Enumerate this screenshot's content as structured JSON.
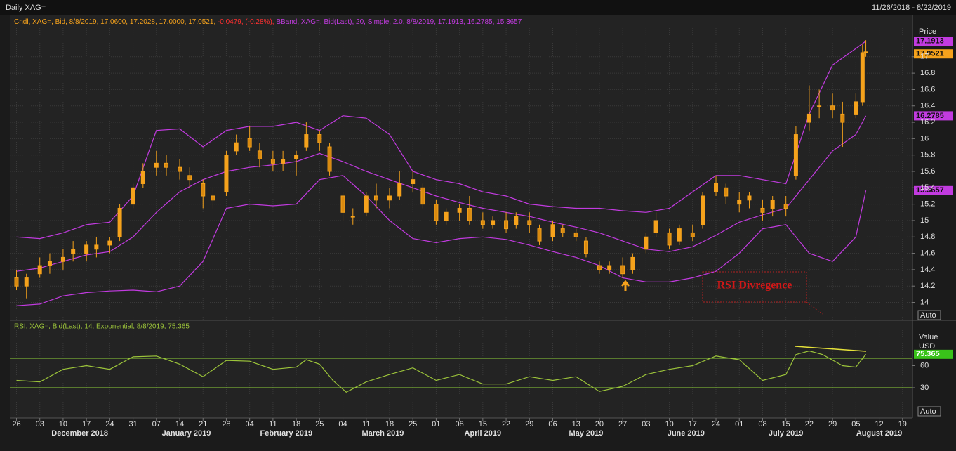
{
  "header": {
    "title": "Daily XAG=",
    "range": "11/26/2018 - 8/22/2019"
  },
  "chart_data": [
    {
      "type": "candlestick",
      "legend": {
        "candle": "Cndl, XAG=, Bid, 8/8/2019, 17.0600, 17.2028, 17.0000, 17.0521,",
        "change": "-0.0479, (-0.28%),",
        "bands": "BBand, XAG=, Bid(Last), 20, Simple, 2.0, 8/8/2019, 17.1913, 16.2785, 15.3657"
      },
      "y_label": "Price",
      "scale_mode": "Auto",
      "annotation": "RSI Divregence",
      "color": "#f5a21c",
      "grid": true,
      "xlim": [
        "2018-11-24",
        "2019-08-22"
      ],
      "ylim": [
        13.79,
        17.35
      ],
      "yticks": [
        14,
        14.2,
        14.4,
        14.6,
        14.8,
        15,
        15.2,
        15.4,
        15.6,
        15.8,
        16,
        16.2,
        16.4,
        16.6,
        16.8,
        17
      ],
      "xticks": [
        {
          "value": "2018-11-26",
          "label": "26"
        },
        {
          "value": "2018-12-03",
          "label": "03"
        },
        {
          "value": "2018-12-10",
          "label": "10"
        },
        {
          "value": "2018-12-17",
          "label": "17"
        },
        {
          "value": "2018-12-24",
          "label": "24"
        },
        {
          "value": "2018-12-31",
          "label": "31"
        },
        {
          "value": "2019-01-07",
          "label": "07"
        },
        {
          "value": "2019-01-14",
          "label": "14"
        },
        {
          "value": "2019-01-21",
          "label": "21"
        },
        {
          "value": "2019-01-28",
          "label": "28"
        },
        {
          "value": "2019-02-04",
          "label": "04"
        },
        {
          "value": "2019-02-11",
          "label": "11"
        },
        {
          "value": "2019-02-18",
          "label": "18"
        },
        {
          "value": "2019-02-25",
          "label": "25"
        },
        {
          "value": "2019-03-04",
          "label": "04"
        },
        {
          "value": "2019-03-11",
          "label": "11"
        },
        {
          "value": "2019-03-18",
          "label": "18"
        },
        {
          "value": "2019-03-25",
          "label": "25"
        },
        {
          "value": "2019-04-01",
          "label": "01"
        },
        {
          "value": "2019-04-08",
          "label": "08"
        },
        {
          "value": "2019-04-15",
          "label": "15"
        },
        {
          "value": "2019-04-22",
          "label": "22"
        },
        {
          "value": "2019-04-29",
          "label": "29"
        },
        {
          "value": "2019-05-06",
          "label": "06"
        },
        {
          "value": "2019-05-13",
          "label": "13"
        },
        {
          "value": "2019-05-20",
          "label": "20"
        },
        {
          "value": "2019-05-27",
          "label": "27"
        },
        {
          "value": "2019-06-03",
          "label": "03"
        },
        {
          "value": "2019-06-10",
          "label": "10"
        },
        {
          "value": "2019-06-17",
          "label": "17"
        },
        {
          "value": "2019-06-24",
          "label": "24"
        },
        {
          "value": "2019-07-01",
          "label": "01"
        },
        {
          "value": "2019-07-08",
          "label": "08"
        },
        {
          "value": "2019-07-15",
          "label": "15"
        },
        {
          "value": "2019-07-22",
          "label": "22"
        },
        {
          "value": "2019-07-29",
          "label": "29"
        },
        {
          "value": "2019-08-05",
          "label": "05"
        },
        {
          "value": "2019-08-12",
          "label": "12"
        },
        {
          "value": "2019-08-19",
          "label": "19"
        }
      ],
      "month_ticks": [
        {
          "value": "2018-12-15",
          "label": "December 2018"
        },
        {
          "value": "2019-01-16",
          "label": "January 2019"
        },
        {
          "value": "2019-02-15",
          "label": "February 2019"
        },
        {
          "value": "2019-03-16",
          "label": "March 2019"
        },
        {
          "value": "2019-04-15",
          "label": "April 2019"
        },
        {
          "value": "2019-05-16",
          "label": "May 2019"
        },
        {
          "value": "2019-06-15",
          "label": "June 2019"
        },
        {
          "value": "2019-07-15",
          "label": "July 2019"
        },
        {
          "value": "2019-08-12",
          "label": "August 2019"
        }
      ],
      "x": [
        "2018-11-26",
        "2018-11-29",
        "2018-12-03",
        "2018-12-06",
        "2018-12-10",
        "2018-12-13",
        "2018-12-17",
        "2018-12-20",
        "2018-12-24",
        "2018-12-27",
        "2018-12-31",
        "2019-01-03",
        "2019-01-07",
        "2019-01-10",
        "2019-01-14",
        "2019-01-17",
        "2019-01-21",
        "2019-01-24",
        "2019-01-28",
        "2019-01-31",
        "2019-02-04",
        "2019-02-07",
        "2019-02-11",
        "2019-02-14",
        "2019-02-18",
        "2019-02-21",
        "2019-02-25",
        "2019-02-28",
        "2019-03-04",
        "2019-03-07",
        "2019-03-11",
        "2019-03-14",
        "2019-03-18",
        "2019-03-21",
        "2019-03-25",
        "2019-03-28",
        "2019-04-01",
        "2019-04-04",
        "2019-04-08",
        "2019-04-11",
        "2019-04-15",
        "2019-04-18",
        "2019-04-22",
        "2019-04-25",
        "2019-04-29",
        "2019-05-02",
        "2019-05-06",
        "2019-05-09",
        "2019-05-13",
        "2019-05-16",
        "2019-05-20",
        "2019-05-23",
        "2019-05-27",
        "2019-05-30",
        "2019-06-03",
        "2019-06-06",
        "2019-06-10",
        "2019-06-13",
        "2019-06-17",
        "2019-06-20",
        "2019-06-24",
        "2019-06-27",
        "2019-07-01",
        "2019-07-04",
        "2019-07-08",
        "2019-07-11",
        "2019-07-15",
        "2019-07-18",
        "2019-07-22",
        "2019-07-25",
        "2019-07-29",
        "2019-08-01",
        "2019-08-05",
        "2019-08-07",
        "2019-08-08"
      ],
      "open": [
        14.3,
        14.2,
        14.35,
        14.45,
        14.5,
        14.6,
        14.6,
        14.65,
        14.7,
        14.8,
        15.2,
        15.45,
        15.65,
        15.7,
        15.65,
        15.55,
        15.45,
        15.3,
        15.35,
        15.85,
        16.0,
        15.85,
        15.75,
        15.7,
        15.75,
        15.9,
        16.05,
        15.9,
        15.3,
        15.05,
        15.1,
        15.3,
        15.25,
        15.3,
        15.45,
        15.4,
        15.2,
        15.0,
        15.1,
        15.15,
        15.0,
        14.95,
        15.0,
        14.95,
        15.0,
        14.9,
        14.8,
        14.9,
        14.85,
        14.75,
        14.45,
        14.4,
        14.45,
        14.4,
        14.65,
        14.85,
        14.85,
        14.75,
        14.85,
        14.95,
        15.35,
        15.4,
        15.2,
        15.25,
        15.15,
        15.15,
        15.2,
        15.55,
        16.2,
        16.4,
        16.4,
        16.3,
        16.3,
        16.45,
        17.06
      ],
      "high": [
        14.4,
        14.35,
        14.55,
        14.6,
        14.65,
        14.75,
        14.75,
        14.8,
        14.8,
        15.2,
        15.45,
        15.7,
        15.85,
        15.8,
        15.75,
        15.65,
        15.5,
        15.4,
        15.85,
        16.05,
        16.15,
        15.95,
        15.85,
        15.85,
        15.85,
        16.2,
        16.1,
        15.95,
        15.35,
        15.15,
        15.35,
        15.45,
        15.4,
        15.6,
        15.6,
        15.45,
        15.25,
        15.15,
        15.2,
        15.3,
        15.1,
        15.05,
        15.1,
        15.1,
        15.1,
        14.95,
        15.0,
        14.95,
        14.9,
        14.8,
        14.5,
        14.5,
        14.55,
        14.6,
        14.85,
        15.1,
        14.9,
        14.95,
        14.95,
        15.35,
        15.55,
        15.45,
        15.35,
        15.35,
        15.25,
        15.3,
        15.3,
        16.15,
        16.65,
        16.6,
        16.55,
        16.45,
        16.55,
        17.15,
        17.2028
      ],
      "low": [
        14.15,
        14.05,
        14.3,
        14.35,
        14.4,
        14.5,
        14.5,
        14.55,
        14.6,
        14.75,
        15.15,
        15.4,
        15.55,
        15.55,
        15.5,
        15.4,
        15.15,
        15.15,
        15.3,
        15.8,
        15.85,
        15.65,
        15.6,
        15.6,
        15.55,
        15.85,
        15.85,
        15.55,
        15.0,
        14.95,
        15.05,
        15.15,
        15.15,
        15.25,
        15.35,
        15.15,
        14.95,
        14.95,
        15.0,
        14.95,
        14.9,
        14.9,
        14.85,
        14.9,
        14.85,
        14.7,
        14.75,
        14.8,
        14.75,
        14.55,
        14.35,
        14.35,
        14.3,
        14.35,
        14.6,
        14.8,
        14.65,
        14.7,
        14.75,
        14.9,
        15.3,
        15.2,
        15.1,
        15.15,
        15.0,
        15.05,
        15.05,
        15.5,
        16.1,
        16.25,
        16.25,
        15.9,
        16.25,
        16.4,
        17.0
      ],
      "close": [
        14.2,
        14.3,
        14.45,
        14.5,
        14.55,
        14.65,
        14.7,
        14.7,
        14.75,
        15.15,
        15.4,
        15.6,
        15.7,
        15.65,
        15.6,
        15.5,
        15.3,
        15.25,
        15.8,
        15.95,
        15.9,
        15.75,
        15.7,
        15.75,
        15.8,
        16.05,
        15.95,
        15.6,
        15.1,
        15.05,
        15.3,
        15.25,
        15.3,
        15.45,
        15.5,
        15.2,
        15.0,
        15.1,
        15.15,
        15.0,
        14.95,
        15.0,
        14.9,
        15.05,
        14.95,
        14.75,
        14.95,
        14.85,
        14.8,
        14.6,
        14.4,
        14.45,
        14.35,
        14.55,
        14.8,
        15.0,
        14.7,
        14.9,
        14.8,
        15.3,
        15.45,
        15.3,
        15.25,
        15.3,
        15.1,
        15.25,
        15.15,
        16.05,
        16.3,
        16.4,
        16.35,
        16.2,
        16.45,
        17.05,
        17.0521
      ],
      "bands": {
        "color": "#c23be0",
        "x": [
          "2018-11-26",
          "2018-12-03",
          "2018-12-10",
          "2018-12-17",
          "2018-12-24",
          "2018-12-31",
          "2019-01-07",
          "2019-01-14",
          "2019-01-21",
          "2019-01-28",
          "2019-02-04",
          "2019-02-11",
          "2019-02-18",
          "2019-02-25",
          "2019-03-04",
          "2019-03-11",
          "2019-03-18",
          "2019-03-25",
          "2019-04-01",
          "2019-04-08",
          "2019-04-15",
          "2019-04-22",
          "2019-04-29",
          "2019-05-06",
          "2019-05-13",
          "2019-05-20",
          "2019-05-27",
          "2019-06-03",
          "2019-06-10",
          "2019-06-17",
          "2019-06-24",
          "2019-07-01",
          "2019-07-08",
          "2019-07-15",
          "2019-07-22",
          "2019-07-29",
          "2019-08-05",
          "2019-08-08"
        ],
        "upper": [
          14.8,
          14.78,
          14.85,
          14.95,
          14.98,
          15.3,
          16.1,
          16.12,
          15.9,
          16.1,
          16.15,
          16.15,
          16.2,
          16.1,
          16.28,
          16.25,
          16.05,
          15.6,
          15.5,
          15.45,
          15.35,
          15.3,
          15.2,
          15.17,
          15.15,
          15.15,
          15.12,
          15.1,
          15.15,
          15.35,
          15.55,
          15.55,
          15.5,
          15.45,
          16.3,
          16.9,
          17.1,
          17.1913
        ],
        "middle": [
          14.38,
          14.42,
          14.5,
          14.58,
          14.62,
          14.8,
          15.1,
          15.35,
          15.5,
          15.6,
          15.65,
          15.68,
          15.72,
          15.82,
          15.72,
          15.6,
          15.5,
          15.4,
          15.3,
          15.22,
          15.15,
          15.1,
          15.05,
          14.98,
          14.92,
          14.85,
          14.75,
          14.65,
          14.62,
          14.68,
          14.82,
          14.98,
          15.07,
          15.15,
          15.5,
          15.85,
          16.05,
          16.2785
        ],
        "lower": [
          13.96,
          13.98,
          14.08,
          14.12,
          14.14,
          14.15,
          14.13,
          14.2,
          14.5,
          15.15,
          15.2,
          15.18,
          15.2,
          15.5,
          15.55,
          15.3,
          15.0,
          14.78,
          14.73,
          14.78,
          14.8,
          14.77,
          14.7,
          14.62,
          14.55,
          14.45,
          14.3,
          14.25,
          14.25,
          14.3,
          14.38,
          14.6,
          14.9,
          14.95,
          14.6,
          14.5,
          14.8,
          15.3657
        ]
      }
    },
    {
      "type": "line",
      "legend": "RSI, XAG=, Bid(Last), 14, Exponential, 8/8/2019, 75.365",
      "y_label": "Value",
      "y_unit": "USD",
      "scale_mode": "Auto",
      "color": "#9cc43a",
      "levels": [
        30,
        70
      ],
      "level_color": "#8fd13a",
      "xlim": [
        "2018-11-24",
        "2019-08-22"
      ],
      "ylim": [
        -11,
        117.6
      ],
      "yticks": [
        30,
        60
      ],
      "x": [
        "2018-11-26",
        "2018-12-03",
        "2018-12-10",
        "2018-12-17",
        "2018-12-24",
        "2018-12-31",
        "2019-01-07",
        "2019-01-14",
        "2019-01-21",
        "2019-01-28",
        "2019-02-04",
        "2019-02-11",
        "2019-02-18",
        "2019-02-21",
        "2019-02-25",
        "2019-03-01",
        "2019-03-05",
        "2019-03-11",
        "2019-03-18",
        "2019-03-25",
        "2019-04-01",
        "2019-04-08",
        "2019-04-15",
        "2019-04-22",
        "2019-04-29",
        "2019-05-06",
        "2019-05-13",
        "2019-05-20",
        "2019-05-27",
        "2019-06-03",
        "2019-06-10",
        "2019-06-17",
        "2019-06-24",
        "2019-07-01",
        "2019-07-08",
        "2019-07-15",
        "2019-07-18",
        "2019-07-22",
        "2019-07-26",
        "2019-08-01",
        "2019-08-05",
        "2019-08-08"
      ],
      "values": [
        40,
        38,
        55,
        60,
        55,
        72,
        73,
        62,
        45,
        67,
        66,
        55,
        58,
        68,
        62,
        40,
        24,
        38,
        48,
        57,
        40,
        48,
        35,
        35,
        45,
        40,
        45,
        25,
        32,
        48,
        55,
        60,
        73,
        68,
        40,
        48,
        75,
        80,
        75,
        60,
        58,
        75.365
      ]
    }
  ]
}
